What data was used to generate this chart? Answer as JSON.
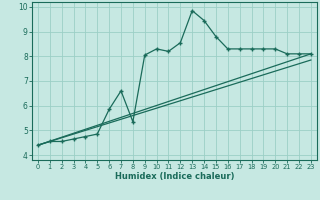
{
  "xlabel": "Humidex (Indice chaleur)",
  "ylabel": "",
  "bg_color": "#c6e8e2",
  "grid_color": "#9ccfc6",
  "line_color": "#1a6b5a",
  "xlim": [
    -0.5,
    23.5
  ],
  "ylim": [
    3.8,
    10.2
  ],
  "xticks": [
    0,
    1,
    2,
    3,
    4,
    5,
    6,
    7,
    8,
    9,
    10,
    11,
    12,
    13,
    14,
    15,
    16,
    17,
    18,
    19,
    20,
    21,
    22,
    23
  ],
  "yticks": [
    4,
    5,
    6,
    7,
    8,
    9,
    10
  ],
  "main_x": [
    0,
    1,
    2,
    3,
    4,
    5,
    6,
    7,
    8,
    9,
    10,
    11,
    12,
    13,
    14,
    15,
    16,
    17,
    18,
    19,
    20,
    21,
    22,
    23
  ],
  "main_y": [
    4.4,
    4.55,
    4.55,
    4.65,
    4.75,
    4.85,
    5.85,
    6.6,
    5.35,
    8.05,
    8.3,
    8.2,
    8.55,
    9.85,
    9.45,
    8.8,
    8.3,
    8.3,
    8.3,
    8.3,
    8.3,
    8.1,
    8.1,
    8.1
  ],
  "line2_x": [
    0,
    23
  ],
  "line2_y": [
    4.4,
    8.1
  ],
  "line3_x": [
    0,
    23
  ],
  "line3_y": [
    4.4,
    7.85
  ]
}
